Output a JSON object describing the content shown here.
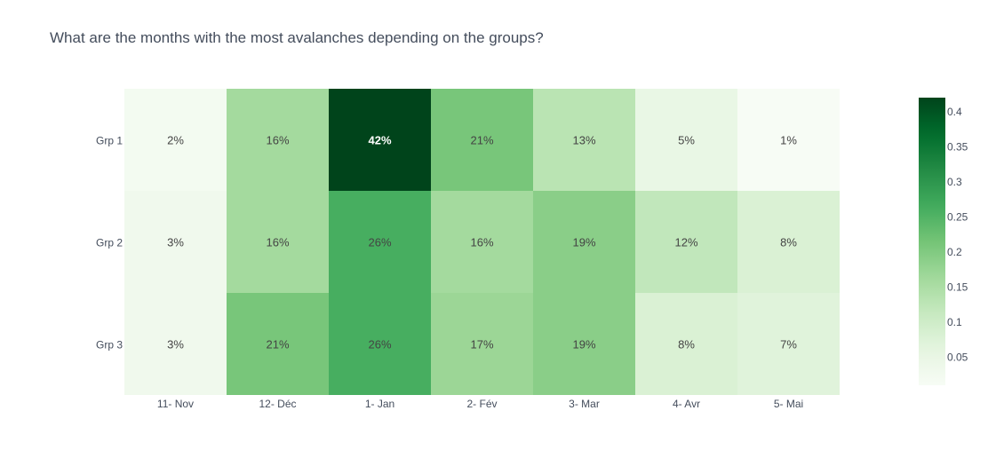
{
  "chart_data": {
    "type": "heatmap",
    "title": "What are the months with the most avalanches depending on the groups?",
    "categories": [
      "11- Nov",
      "12- Déc",
      "1- Jan",
      "2- Fév",
      "3- Mar",
      "4- Avr",
      "5- Mai"
    ],
    "rows": [
      "Grp 1",
      "Grp 2",
      "Grp 3"
    ],
    "values": [
      [
        0.02,
        0.16,
        0.42,
        0.21,
        0.13,
        0.05,
        0.01
      ],
      [
        0.03,
        0.16,
        0.26,
        0.16,
        0.19,
        0.12,
        0.08
      ],
      [
        0.03,
        0.21,
        0.26,
        0.17,
        0.19,
        0.08,
        0.07
      ]
    ],
    "cell_labels": [
      [
        "2%",
        "16%",
        "42%",
        "21%",
        "13%",
        "5%",
        "1%"
      ],
      [
        "3%",
        "16%",
        "26%",
        "16%",
        "19%",
        "12%",
        "8%"
      ],
      [
        "3%",
        "21%",
        "26%",
        "17%",
        "19%",
        "8%",
        "7%"
      ]
    ],
    "colorscale": "Greens",
    "zmin": 0.01,
    "zmax": 0.42,
    "colorbar_ticks": [
      "0.05",
      "0.1",
      "0.15",
      "0.2",
      "0.25",
      "0.3",
      "0.35",
      "0.4"
    ],
    "legend_position": "right"
  }
}
